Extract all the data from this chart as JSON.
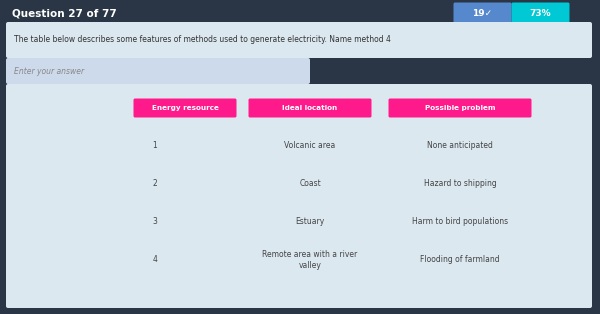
{
  "title": "Question 27 of 77",
  "score_text": "19✓  73%",
  "question_text": "The table below describes some features of methods used to generate electricity. Name method 4",
  "input_placeholder": "Enter your answer",
  "headers": [
    "Energy resource",
    "Ideal location",
    "Possible problem"
  ],
  "rows": [
    [
      "1",
      "Volcanic area",
      "None anticipated"
    ],
    [
      "2",
      "Coast",
      "Hazard to shipping"
    ],
    [
      "3",
      "Estuary",
      "Harm to bird populations"
    ],
    [
      "4",
      "Remote area with a river\nvalley",
      "Flooding of farmland"
    ]
  ],
  "bg_color": "#2a3545",
  "panel_color": "#dce8f0",
  "header_color": "#ff1a8c",
  "header_text_color": "#ffffff",
  "title_color": "#ffffff",
  "title_fontsize": 7.5,
  "score_bg": "#00c8d4",
  "score_text_color": "#ffffff",
  "question_box_bg": "#dce8f0",
  "input_box_bg": "#cddaeb",
  "row_text_color": "#444444",
  "row_fontsize": 5.5
}
